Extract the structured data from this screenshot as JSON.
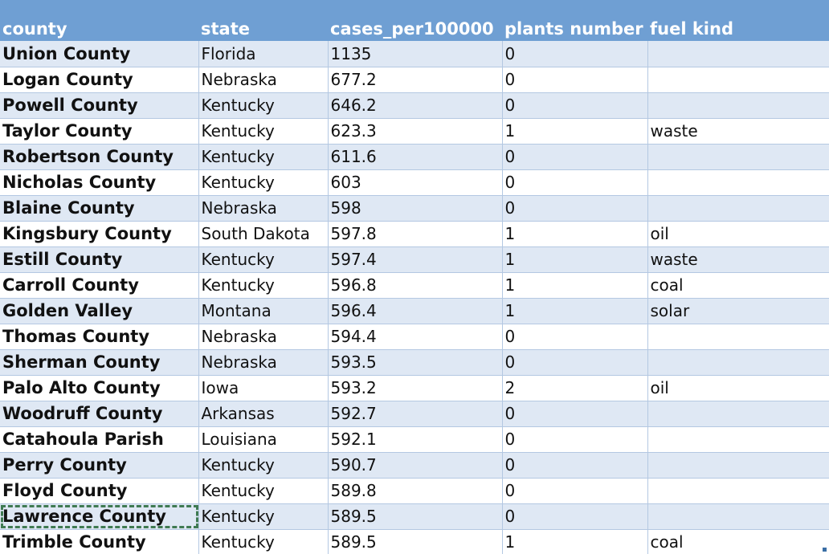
{
  "table": {
    "columns": [
      "county",
      "state",
      "cases_per100000",
      "plants number",
      "fuel kind"
    ],
    "rows": [
      {
        "county": "Union County",
        "state": "Florida",
        "cases": "1135",
        "plants": "0",
        "fuel": ""
      },
      {
        "county": "Logan County",
        "state": "Nebraska",
        "cases": "677.2",
        "plants": "0",
        "fuel": ""
      },
      {
        "county": "Powell County",
        "state": "Kentucky",
        "cases": "646.2",
        "plants": "0",
        "fuel": ""
      },
      {
        "county": "Taylor County",
        "state": "Kentucky",
        "cases": "623.3",
        "plants": "1",
        "fuel": "waste"
      },
      {
        "county": "Robertson County",
        "state": "Kentucky",
        "cases": "611.6",
        "plants": "0",
        "fuel": ""
      },
      {
        "county": "Nicholas County",
        "state": "Kentucky",
        "cases": "603",
        "plants": "0",
        "fuel": ""
      },
      {
        "county": "Blaine County",
        "state": "Nebraska",
        "cases": "598",
        "plants": "0",
        "fuel": ""
      },
      {
        "county": "Kingsbury County",
        "state": "South Dakota",
        "cases": "597.8",
        "plants": "1",
        "fuel": "oil"
      },
      {
        "county": "Estill County",
        "state": "Kentucky",
        "cases": "597.4",
        "plants": "1",
        "fuel": "waste"
      },
      {
        "county": "Carroll County",
        "state": "Kentucky",
        "cases": "596.8",
        "plants": "1",
        "fuel": "coal"
      },
      {
        "county": "Golden Valley",
        "state": "Montana",
        "cases": "596.4",
        "plants": "1",
        "fuel": "solar"
      },
      {
        "county": "Thomas County",
        "state": "Nebraska",
        "cases": "594.4",
        "plants": "0",
        "fuel": ""
      },
      {
        "county": "Sherman County",
        "state": "Nebraska",
        "cases": "593.5",
        "plants": "0",
        "fuel": ""
      },
      {
        "county": "Palo Alto County",
        "state": "Iowa",
        "cases": "593.2",
        "plants": "2",
        "fuel": "oil"
      },
      {
        "county": "Woodruff County",
        "state": "Arkansas",
        "cases": "592.7",
        "plants": "0",
        "fuel": ""
      },
      {
        "county": "Catahoula Parish",
        "state": "Louisiana",
        "cases": "592.1",
        "plants": "0",
        "fuel": ""
      },
      {
        "county": "Perry County",
        "state": "Kentucky",
        "cases": "590.7",
        "plants": "0",
        "fuel": ""
      },
      {
        "county": "Floyd County",
        "state": "Kentucky",
        "cases": "589.8",
        "plants": "0",
        "fuel": ""
      },
      {
        "county": "Lawrence County",
        "state": "Kentucky",
        "cases": "589.5",
        "plants": "0",
        "fuel": ""
      },
      {
        "county": "Trimble County",
        "state": "Kentucky",
        "cases": "589.5",
        "plants": "1",
        "fuel": "coal"
      }
    ],
    "selected_row_index": 18
  },
  "colors": {
    "header_bg": "#6f9fd3",
    "band_bg": "#dfe8f4",
    "selection_border": "#3f7a52"
  }
}
